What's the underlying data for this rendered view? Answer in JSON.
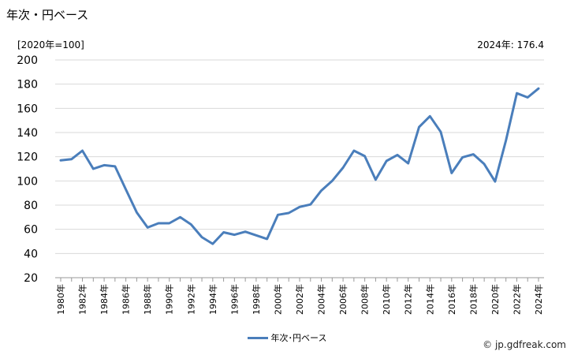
{
  "title": "年次・円ベース",
  "unit_note": "[2020年=100]",
  "latest_note": "2024年: 176.4",
  "credit": "© jp.gdfreak.com",
  "colors": {
    "series": "#4a7ebb",
    "grid": "#d9d9d9",
    "axis": "#999999"
  },
  "chart_data": {
    "type": "line",
    "title": "年次・円ベース",
    "ylim": [
      20,
      200
    ],
    "yticks": [
      20,
      40,
      60,
      80,
      100,
      120,
      140,
      160,
      180,
      200
    ],
    "grid": true,
    "legend": "bottom-center",
    "x": [
      1980,
      1981,
      1982,
      1983,
      1984,
      1985,
      1986,
      1987,
      1988,
      1989,
      1990,
      1991,
      1992,
      1993,
      1994,
      1995,
      1996,
      1997,
      1998,
      1999,
      2000,
      2001,
      2002,
      2003,
      2004,
      2005,
      2006,
      2007,
      2008,
      2009,
      2010,
      2011,
      2012,
      2013,
      2014,
      2015,
      2016,
      2017,
      2018,
      2019,
      2020,
      2021,
      2022,
      2023,
      2024
    ],
    "xtick_labels": [
      "1980年",
      "1982年",
      "1984年",
      "1986年",
      "1988年",
      "1990年",
      "1992年",
      "1994年",
      "1996年",
      "1998年",
      "2000年",
      "2002年",
      "2004年",
      "2006年",
      "2008年",
      "2010年",
      "2012年",
      "2014年",
      "2016年",
      "2018年",
      "2020年",
      "2022年",
      "2024年"
    ],
    "series": [
      {
        "name": "年次･円ベース",
        "values": [
          117,
          118,
          125,
          110,
          113,
          112,
          93,
          74,
          61.5,
          65,
          65,
          70,
          64,
          53.5,
          48,
          57.5,
          55.5,
          58,
          55,
          52,
          72,
          73.5,
          78.5,
          80.5,
          92,
          100,
          111,
          125,
          120.5,
          101,
          116.5,
          121.5,
          114.5,
          144.5,
          153.5,
          140.5,
          106.5,
          119.5,
          122,
          114,
          99.5,
          133.5,
          172.5,
          169,
          176.4
        ]
      }
    ]
  }
}
